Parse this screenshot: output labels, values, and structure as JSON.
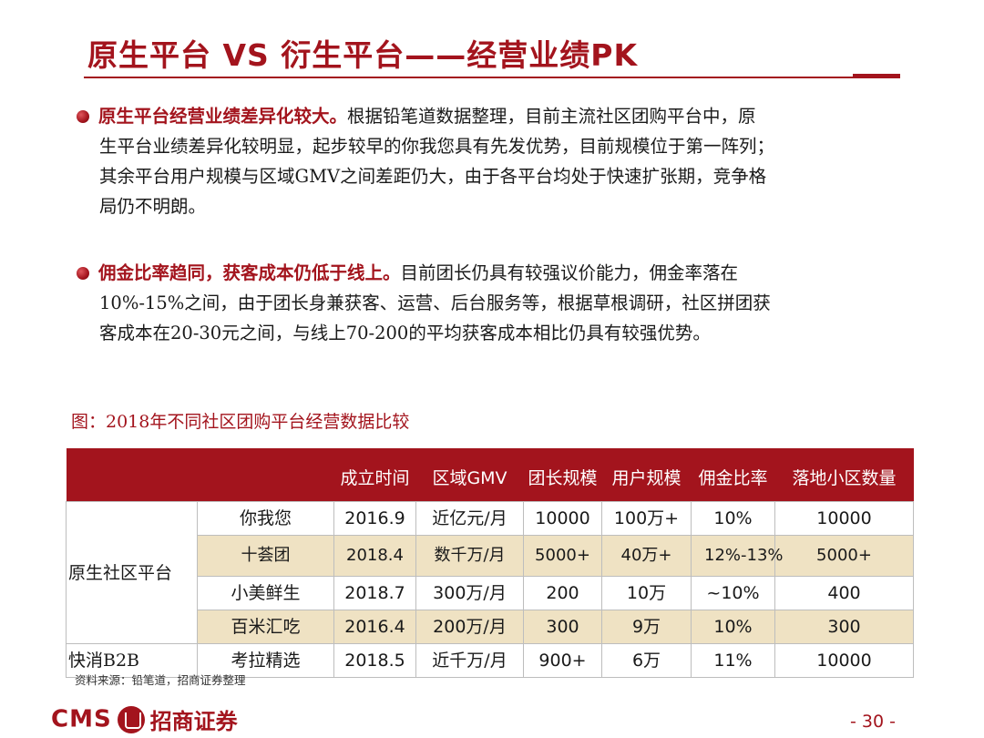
{
  "title": "原生平台 VS 衍生平台——经营业绩PK",
  "bullets": [
    {
      "lead": "原生平台经营业绩差异化较大。",
      "lines": [
        "根据铅笔道数据整理，目前主流社区团购平台中，原",
        "生平台业绩差异化较明显，起步较早的你我您具有先发优势，目前规模位于第一阵列；",
        "其余平台用户规模与区域GMV之间差距仍大，由于各平台均处于快速扩张期，竞争格",
        "局仍不明朗。"
      ]
    },
    {
      "lead": "佣金比率趋同，获客成本仍低于线上。",
      "lines": [
        "目前团长仍具有较强议价能力，佣金率落在",
        "10%-15%之间，由于团长身兼获客、运营、后台服务等，根据草根调研，社区拼团获",
        "客成本在20-30元之间，与线上70-200的平均获客成本相比仍具有较强优势。"
      ]
    }
  ],
  "figure_caption": "图：2018年不同社区团购平台经营数据比较",
  "table": {
    "headers": [
      "",
      "",
      "成立时间",
      "区域GMV",
      "团长规模",
      "用户规模",
      "佣金比率",
      "落地小区数量"
    ],
    "groups": [
      "原生社区平台",
      "快消B2B"
    ],
    "rows": [
      [
        "你我您",
        "2016.9",
        "近亿元/月",
        "10000",
        "100万+",
        "10%",
        "10000"
      ],
      [
        "十荟团",
        "2018.4",
        "数千万/月",
        "5000+",
        "40万+",
        "12%-13%",
        "5000+"
      ],
      [
        "小美鲜生",
        "2018.7",
        "300万/月",
        "200",
        "10万",
        "~10%",
        "400"
      ],
      [
        "百米汇吃",
        "2016.4",
        "200万/月",
        "300",
        "9万",
        "10%",
        "300"
      ],
      [
        "考拉精选",
        "2018.5",
        "近千万/月",
        "900+",
        "6万",
        "11%",
        "10000"
      ]
    ]
  },
  "source": "资料来源：铅笔道，招商证券整理",
  "footer": {
    "logo_cms": "CMS",
    "logo_name": "招商证券",
    "page_number": "- 30 -"
  },
  "colors": {
    "accent": "#a3141d",
    "row_highlight": "#efe2c3"
  }
}
